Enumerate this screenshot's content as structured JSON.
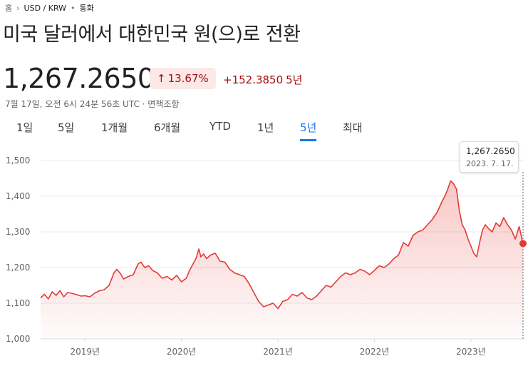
{
  "breadcrumb": {
    "home": "홈",
    "pair": "USD / KRW",
    "category": "통화"
  },
  "title": "미국 달러에서 대한민국 원(으)로 전환",
  "price": "1,267.2650",
  "change": {
    "percent": "13.67%",
    "amount": "+152.3850",
    "period": "5년",
    "color": "#a50e0e",
    "badge_bg": "#fce8e6"
  },
  "meta": "7월 17일, 오전 6시 24분 56초 UTC · 면책조항",
  "tabs": [
    {
      "label": "1일"
    },
    {
      "label": "5일"
    },
    {
      "label": "1개월"
    },
    {
      "label": "6개월"
    },
    {
      "label": "YTD"
    },
    {
      "label": "1년"
    },
    {
      "label": "5년"
    },
    {
      "label": "최대"
    }
  ],
  "active_tab": "5년",
  "tooltip": {
    "value": "1,267.2650",
    "date": "2023. 7. 17."
  },
  "chart_data": {
    "type": "area",
    "line_color": "#e53935",
    "y_ticks": [
      1000,
      1100,
      1200,
      1300,
      1400,
      1500
    ],
    "y_tick_labels": [
      "1,000",
      "1,100",
      "1,200",
      "1,300",
      "1,400",
      "1,500"
    ],
    "ylim": [
      1000,
      1500
    ],
    "x_tick_labels": [
      "2019년",
      "2020년",
      "2021년",
      "2022년",
      "2023년"
    ],
    "x_tick_years": [
      2019,
      2020,
      2021,
      2022,
      2023
    ],
    "xlim": [
      2018.54,
      2023.54
    ],
    "grid": true,
    "series": [
      {
        "x": [
          2018.54,
          2018.58,
          2018.62,
          2018.66,
          2018.7,
          2018.74,
          2018.78,
          2018.82,
          2018.86,
          2018.9,
          2018.96,
          2019.0,
          2019.05,
          2019.1,
          2019.15,
          2019.2,
          2019.25,
          2019.3,
          2019.33,
          2019.37,
          2019.4,
          2019.45,
          2019.5,
          2019.55,
          2019.58,
          2019.62,
          2019.66,
          2019.7,
          2019.75,
          2019.8,
          2019.85,
          2019.9,
          2019.95,
          2020.0,
          2020.05,
          2020.08,
          2020.12,
          2020.15,
          2020.18,
          2020.2,
          2020.23,
          2020.26,
          2020.3,
          2020.35,
          2020.4,
          2020.45,
          2020.5,
          2020.55,
          2020.6,
          2020.65,
          2020.7,
          2020.75,
          2020.8,
          2020.85,
          2020.9,
          2020.95,
          2021.0,
          2021.05,
          2021.1,
          2021.15,
          2021.2,
          2021.25,
          2021.3,
          2021.35,
          2021.4,
          2021.45,
          2021.5,
          2021.55,
          2021.6,
          2021.65,
          2021.7,
          2021.75,
          2021.8,
          2021.85,
          2021.9,
          2021.95,
          2022.0,
          2022.05,
          2022.1,
          2022.15,
          2022.2,
          2022.25,
          2022.3,
          2022.35,
          2022.4,
          2022.45,
          2022.5,
          2022.55,
          2022.6,
          2022.65,
          2022.7,
          2022.73,
          2022.76,
          2022.79,
          2022.82,
          2022.85,
          2022.88,
          2022.91,
          2022.94,
          2022.97,
          2023.0,
          2023.03,
          2023.06,
          2023.09,
          2023.12,
          2023.15,
          2023.18,
          2023.22,
          2023.26,
          2023.3,
          2023.34,
          2023.38,
          2023.42,
          2023.46,
          2023.5,
          2023.54
        ],
        "y": [
          1115,
          1125,
          1112,
          1132,
          1122,
          1135,
          1118,
          1130,
          1128,
          1125,
          1120,
          1121,
          1118,
          1128,
          1135,
          1138,
          1150,
          1185,
          1195,
          1182,
          1168,
          1175,
          1180,
          1210,
          1215,
          1200,
          1205,
          1192,
          1185,
          1170,
          1175,
          1165,
          1178,
          1160,
          1170,
          1190,
          1210,
          1225,
          1252,
          1230,
          1238,
          1225,
          1235,
          1240,
          1218,
          1215,
          1195,
          1185,
          1180,
          1175,
          1155,
          1130,
          1105,
          1090,
          1095,
          1100,
          1085,
          1105,
          1110,
          1125,
          1120,
          1130,
          1115,
          1110,
          1120,
          1135,
          1150,
          1145,
          1160,
          1175,
          1185,
          1180,
          1185,
          1195,
          1190,
          1180,
          1192,
          1205,
          1200,
          1210,
          1225,
          1235,
          1270,
          1260,
          1290,
          1300,
          1305,
          1320,
          1335,
          1355,
          1385,
          1400,
          1420,
          1443,
          1435,
          1420,
          1360,
          1320,
          1305,
          1280,
          1260,
          1240,
          1230,
          1270,
          1305,
          1320,
          1310,
          1300,
          1325,
          1315,
          1340,
          1320,
          1305,
          1280,
          1315,
          1267
        ]
      }
    ],
    "last_point": {
      "x": 2023.54,
      "y": 1267.265
    }
  }
}
